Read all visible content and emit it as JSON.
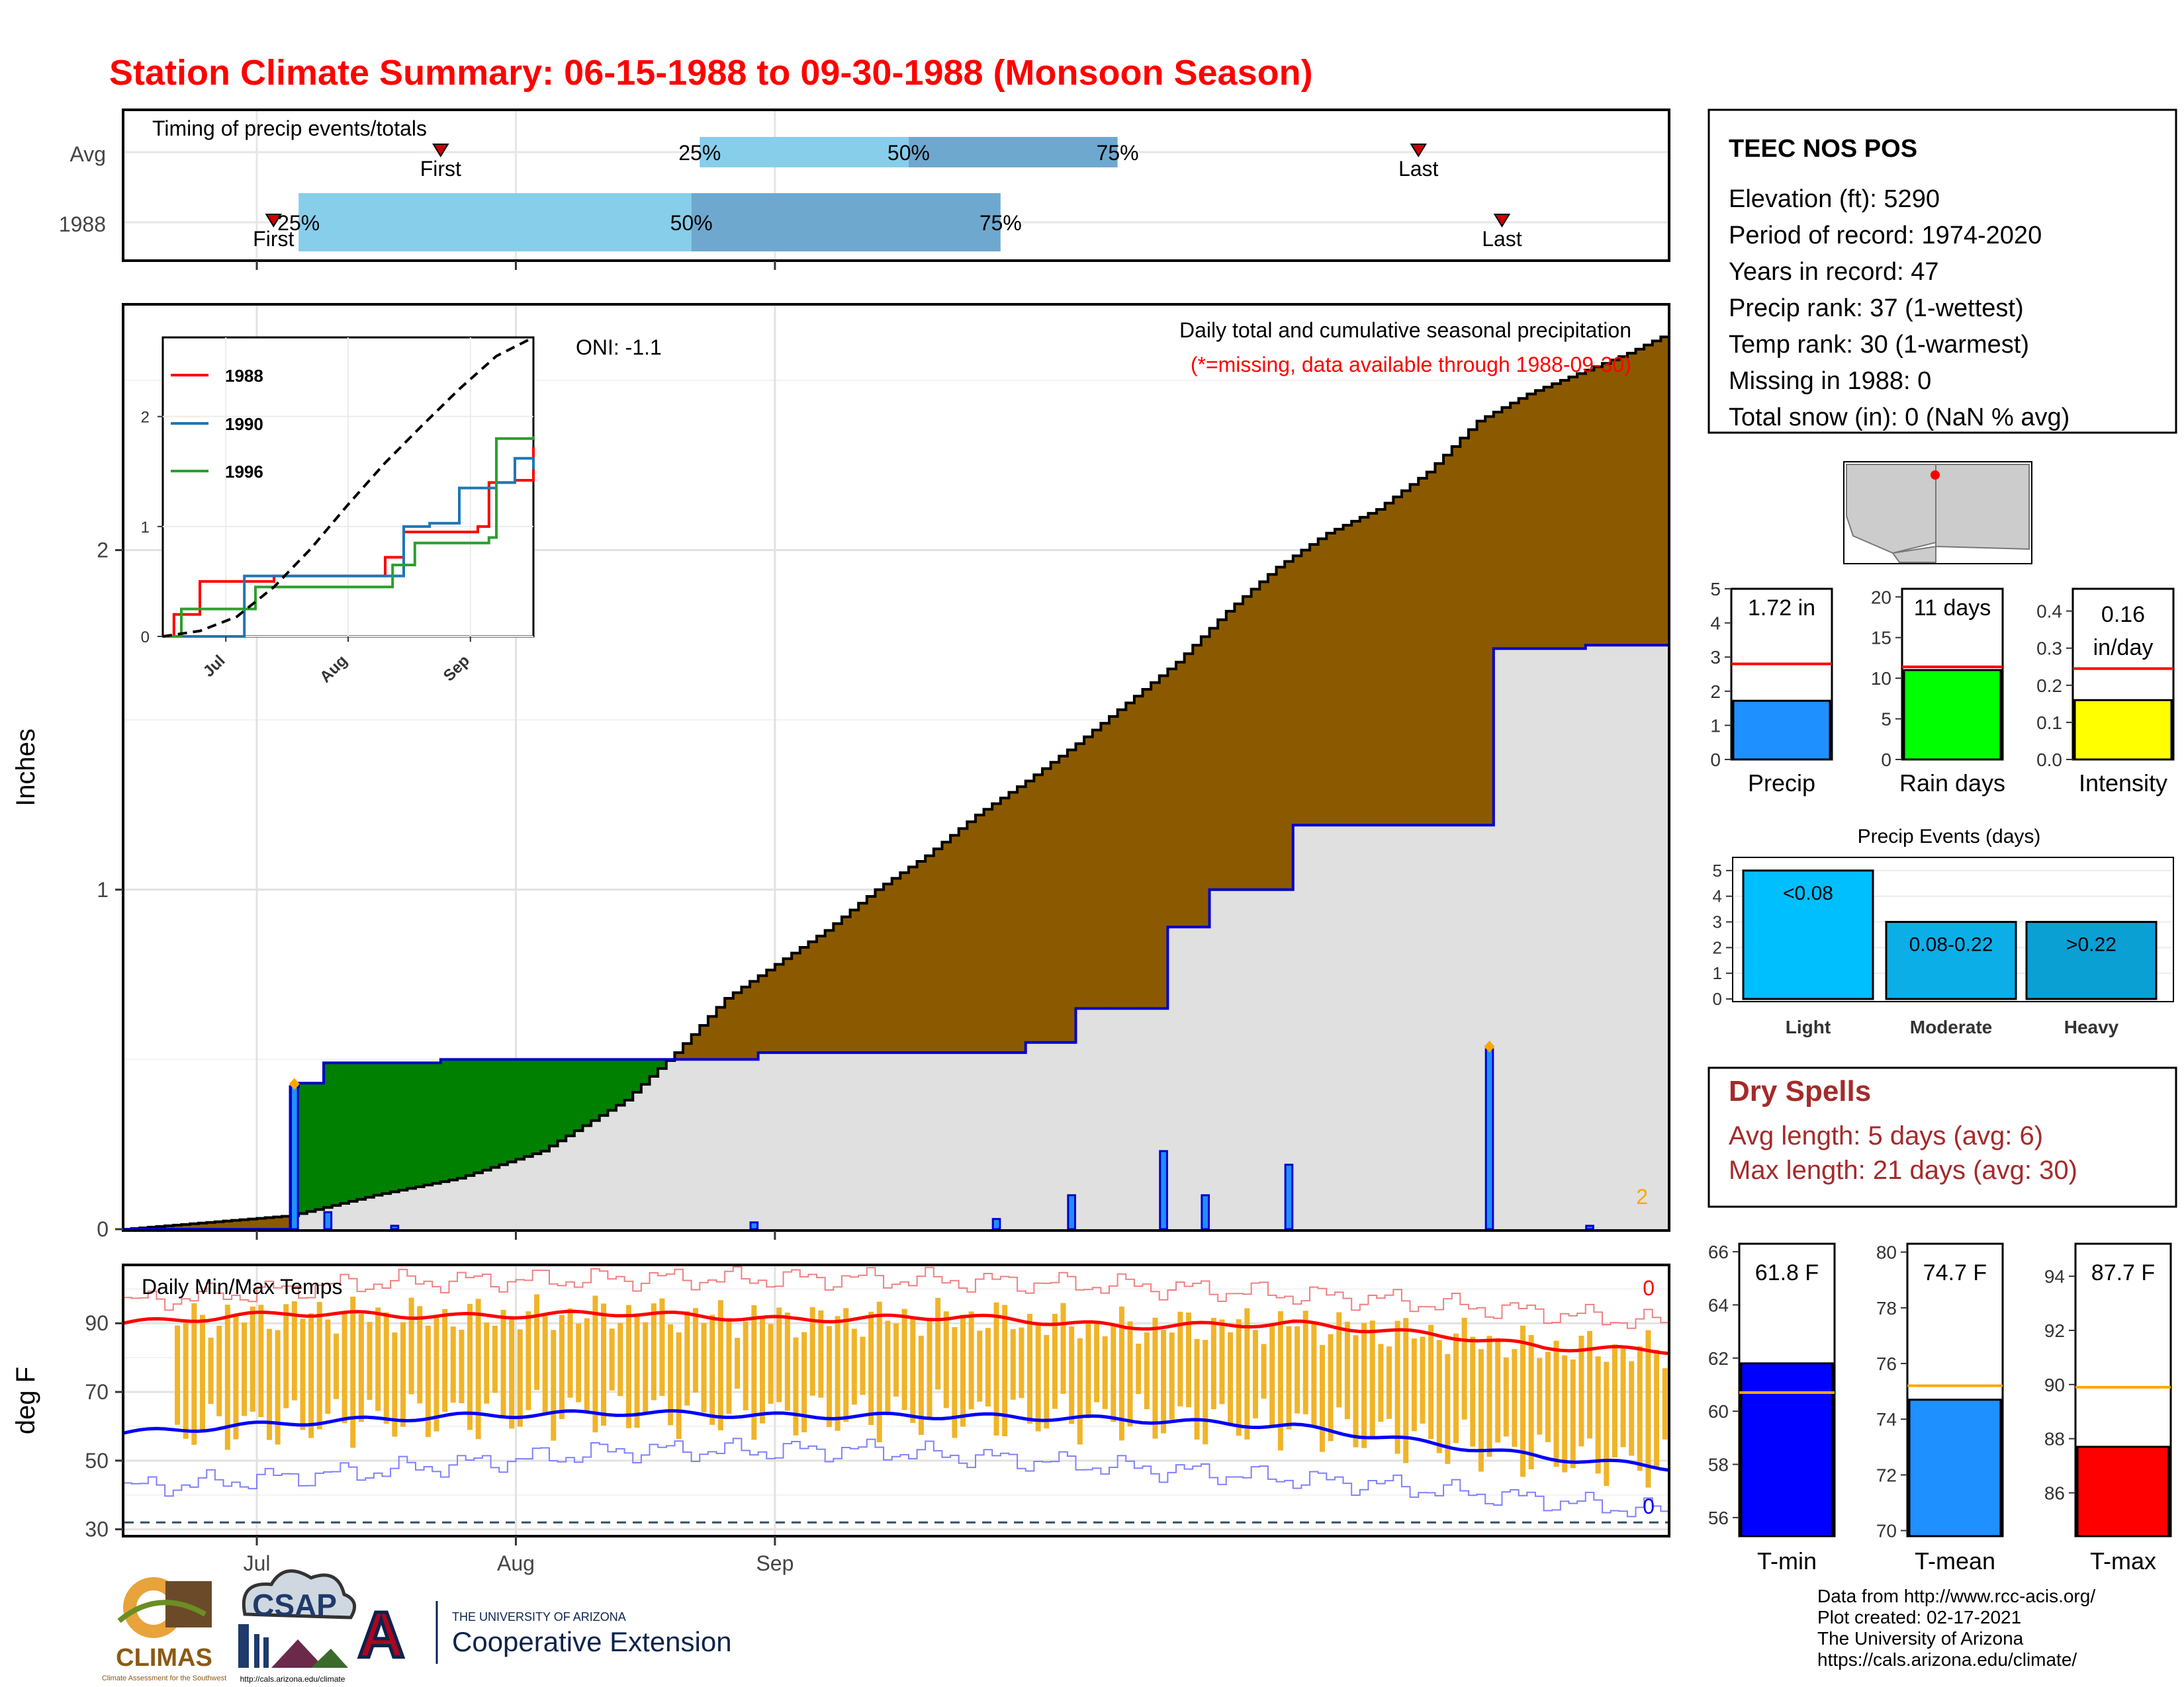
{
  "title": "Station Climate Summary: 06-15-1988 to 09-30-1988 (Monsoon Season)",
  "colors": {
    "title": "#ff0000",
    "precip_avg": "#8b5a00",
    "precip_above": "#008000",
    "bars": "#1e90ff",
    "tmax": "#ff0000",
    "tmin": "#0000ff",
    "temp_range": "#f0b429",
    "dry_spells": "#a52a2a"
  },
  "timing": {
    "title": "Timing of precip events/totals",
    "rows": [
      "Avg",
      "1988"
    ],
    "avg": {
      "first_label": "First",
      "last_label": "Last",
      "p25": "25%",
      "p50": "50%",
      "p75": "75%",
      "first_day": 38,
      "last_day": 155,
      "p25_day": 69,
      "p50_day": 94,
      "p75_day": 119
    },
    "year": {
      "first_label": "First",
      "last_label": "Last",
      "p25": "25%",
      "p50": "50%",
      "p75": "75%",
      "first_day": 18,
      "last_day": 165,
      "p25_day": 21,
      "p50_day": 68,
      "p75_day": 105
    }
  },
  "main_chart": {
    "oni": "ONI: -1.1",
    "subtitle": "Daily total and cumulative seasonal precipitation",
    "missing_note": "(*=missing, data available through 1988-09-30)",
    "ylabel": "Inches",
    "y_ticks": [
      "0",
      "1",
      "2"
    ],
    "x_ticks": [
      "Jul",
      "Aug",
      "Sep"
    ],
    "corner_count": "2"
  },
  "inset": {
    "legend": [
      "1988",
      "1990",
      "1996"
    ],
    "y_ticks": [
      "0",
      "1",
      "2"
    ],
    "x_ticks": [
      "Jul",
      "Aug",
      "Sep"
    ]
  },
  "temps": {
    "title": "Daily Min/Max Temps",
    "ylabel": "deg F",
    "y_ticks": [
      "30",
      "50",
      "70",
      "90"
    ],
    "x_ticks": [
      "Jul",
      "Aug",
      "Sep"
    ],
    "count_max": "0",
    "count_min": "0"
  },
  "station": {
    "name": "TEEC NOS POS",
    "lines": [
      "Elevation (ft): 5290",
      "Period of record: 1974-2020",
      "Years in record: 47",
      "Precip rank: 37 (1-wettest)",
      "Temp rank: 30 (1-warmest)",
      "Missing in 1988: 0",
      "Total snow (in): 0 (NaN % avg)"
    ]
  },
  "mini_precip": {
    "label": "Precip",
    "value_text": "1.72 in",
    "value": 1.72,
    "avg": 2.8,
    "ymax": 5,
    "ticks": [
      "0",
      "1",
      "2",
      "3",
      "4",
      "5"
    ],
    "color": "#1e90ff"
  },
  "mini_raindays": {
    "label": "Rain days",
    "value_text": "11 days",
    "value": 11,
    "avg": 11.4,
    "ymax": 21,
    "ticks": [
      "0",
      "5",
      "10",
      "15",
      "20"
    ],
    "color": "#00ff00"
  },
  "mini_intensity": {
    "label": "Intensity",
    "value_text_1": "0.16",
    "value_text_2": "in/day",
    "value": 0.16,
    "avg": 0.245,
    "ymax": 0.46,
    "ticks": [
      "0.0",
      "0.1",
      "0.2",
      "0.3",
      "0.4"
    ],
    "color": "#ffff00"
  },
  "precip_events": {
    "title": "Precip Events (days)",
    "ticks": [
      "0",
      "1",
      "2",
      "3",
      "4",
      "5"
    ],
    "bars": [
      {
        "label": "Light",
        "range": "<0.08",
        "value": 5,
        "color": "#00bfff"
      },
      {
        "label": "Moderate",
        "range": "0.08-0.22",
        "value": 3,
        "color": "#0caee8"
      },
      {
        "label": "Heavy",
        "range": ">0.22",
        "value": 3,
        "color": "#0aa0d4"
      }
    ]
  },
  "dry_spells": {
    "title": "Dry Spells",
    "avg": "Avg length: 5 days (avg: 6)",
    "max": "Max length: 21 days (avg: 30)"
  },
  "tmin_box": {
    "label": "T-min",
    "value_text": "61.8 F",
    "value": 61.8,
    "avg": 60.7,
    "ymin": 55.3,
    "ymax": 66.3,
    "ticks": [
      "56",
      "58",
      "60",
      "62",
      "64",
      "66"
    ],
    "color": "#0000ff"
  },
  "tmean_box": {
    "label": "T-mean",
    "value_text": "74.7 F",
    "value": 74.7,
    "avg": 75.2,
    "ymin": 69.8,
    "ymax": 80.3,
    "ticks": [
      "70",
      "72",
      "74",
      "76",
      "78",
      "80"
    ],
    "color": "#1e90ff"
  },
  "tmax_box": {
    "label": "T-max",
    "value_text": "87.7 F",
    "value": 87.7,
    "avg": 89.9,
    "ymin": 84.4,
    "ymax": 95.2,
    "ticks": [
      "86",
      "88",
      "90",
      "92",
      "94"
    ],
    "color": "#ff0000"
  },
  "footer": [
    "Data from http://www.rcc-acis.org/",
    "Plot created: 02-17-2021",
    "The University of Arizona",
    "https://cals.arizona.edu/climate/"
  ],
  "logos": {
    "climas": "CLIMAS",
    "climas_sub": "Climate Assessment for the Southwest",
    "csap": "CSAP",
    "csap_url": "http://cals.arizona.edu/climate",
    "ua_letter": "A",
    "ua_line1": "THE UNIVERSITY OF ARIZONA",
    "ua_line2": "Cooperative Extension"
  },
  "chart_data": [
    {
      "type": "area",
      "title": "Daily total and cumulative seasonal precipitation",
      "ylabel": "Inches",
      "ylim": [
        0,
        2.72
      ],
      "x_range": [
        "1988-06-15",
        "1988-09-30"
      ],
      "series": [
        {
          "name": "1988",
          "cumulative_points": [
            [
              0,
              0
            ],
            [
              19,
              0
            ],
            [
              20,
              0.42
            ],
            [
              21,
              0.43
            ],
            [
              24,
              0.49
            ],
            [
              38,
              0.5
            ],
            [
              75,
              0.5
            ],
            [
              76,
              0.52
            ],
            [
              107,
              0.52
            ],
            [
              108,
              0.55
            ],
            [
              113,
              0.55
            ],
            [
              114,
              0.65
            ],
            [
              124,
              0.65
            ],
            [
              125,
              0.89
            ],
            [
              129,
              0.89
            ],
            [
              130,
              1.0
            ],
            [
              139,
              1.0
            ],
            [
              140,
              1.19
            ],
            [
              163,
              1.19
            ],
            [
              164,
              1.71
            ],
            [
              174,
              1.71
            ],
            [
              175,
              1.72
            ],
            [
              185,
              1.72
            ]
          ]
        },
        {
          "name": "average",
          "cumulative_points": [
            [
              0,
              0
            ],
            [
              10,
              0.02
            ],
            [
              20,
              0.04
            ],
            [
              30,
              0.1
            ],
            [
              40,
              0.15
            ],
            [
              50,
              0.23
            ],
            [
              60,
              0.38
            ],
            [
              66,
              0.52
            ],
            [
              72,
              0.68
            ],
            [
              78,
              0.78
            ],
            [
              84,
              0.88
            ],
            [
              90,
              1.0
            ],
            [
              96,
              1.1
            ],
            [
              102,
              1.22
            ],
            [
              108,
              1.32
            ],
            [
              114,
              1.43
            ],
            [
              120,
              1.55
            ],
            [
              126,
              1.67
            ],
            [
              132,
              1.82
            ],
            [
              138,
              1.95
            ],
            [
              144,
              2.05
            ],
            [
              150,
              2.12
            ],
            [
              156,
              2.23
            ],
            [
              162,
              2.38
            ],
            [
              168,
              2.46
            ],
            [
              174,
              2.52
            ],
            [
              180,
              2.58
            ],
            [
              185,
              2.64
            ]
          ]
        }
      ],
      "daily_bars": [
        [
          20,
          0.42
        ],
        [
          24,
          0.05
        ],
        [
          32,
          0.01
        ],
        [
          75,
          0.02
        ],
        [
          104,
          0.03
        ],
        [
          113,
          0.1
        ],
        [
          124,
          0.23
        ],
        [
          129,
          0.1
        ],
        [
          139,
          0.19
        ],
        [
          163,
          0.53
        ],
        [
          175,
          0.01
        ]
      ],
      "missing_markers": [
        20,
        163
      ]
    },
    {
      "type": "line",
      "title": "Inset cumulative precipitation comparison",
      "ylim": [
        0,
        2.72
      ],
      "series": [
        {
          "name": "1988",
          "points": [
            [
              0,
              0
            ],
            [
              3,
              0.2
            ],
            [
              10,
              0.5
            ],
            [
              30,
              0.55
            ],
            [
              55,
              0.55
            ],
            [
              60,
              0.72
            ],
            [
              65,
              0.95
            ],
            [
              85,
              1.0
            ],
            [
              88,
              1.4
            ],
            [
              95,
              1.42
            ],
            [
              100,
              1.72
            ]
          ]
        },
        {
          "name": "1990",
          "points": [
            [
              0,
              0
            ],
            [
              10,
              0
            ],
            [
              22,
              0.55
            ],
            [
              60,
              0.55
            ],
            [
              65,
              1.0
            ],
            [
              72,
              1.03
            ],
            [
              80,
              1.35
            ],
            [
              90,
              1.4
            ],
            [
              95,
              1.62
            ],
            [
              100,
              1.52
            ]
          ]
        },
        {
          "name": "1996",
          "points": [
            [
              0,
              0
            ],
            [
              5,
              0.25
            ],
            [
              20,
              0.25
            ],
            [
              25,
              0.45
            ],
            [
              55,
              0.45
            ],
            [
              62,
              0.65
            ],
            [
              68,
              0.85
            ],
            [
              88,
              0.9
            ],
            [
              90,
              1.8
            ],
            [
              100,
              1.82
            ]
          ]
        },
        {
          "name": "average",
          "points": [
            [
              0,
              0
            ],
            [
              10,
              0.05
            ],
            [
              20,
              0.18
            ],
            [
              30,
              0.45
            ],
            [
              40,
              0.8
            ],
            [
              50,
              1.2
            ],
            [
              60,
              1.58
            ],
            [
              70,
              1.92
            ],
            [
              80,
              2.25
            ],
            [
              90,
              2.55
            ],
            [
              100,
              2.72
            ]
          ]
        }
      ]
    },
    {
      "type": "line",
      "title": "Daily Min/Max Temps",
      "ylabel": "deg F",
      "ylim": [
        28,
        107
      ],
      "series": [
        {
          "name": "avg_max",
          "points": [
            [
              0,
              90
            ],
            [
              20,
              93
            ],
            [
              40,
              92
            ],
            [
              60,
              93
            ],
            [
              80,
              91
            ],
            [
              100,
              92
            ],
            [
              120,
              89
            ],
            [
              140,
              90
            ],
            [
              150,
              88
            ],
            [
              160,
              86
            ],
            [
              170,
              83
            ],
            [
              185,
              82
            ]
          ]
        },
        {
          "name": "avg_min",
          "points": [
            [
              0,
              58
            ],
            [
              20,
              61
            ],
            [
              40,
              63
            ],
            [
              60,
              64
            ],
            [
              80,
              63
            ],
            [
              100,
              63
            ],
            [
              120,
              62
            ],
            [
              140,
              60
            ],
            [
              150,
              57
            ],
            [
              160,
              54
            ],
            [
              170,
              51
            ],
            [
              185,
              48
            ]
          ]
        },
        {
          "name": "record_max",
          "points": [
            [
              0,
              96
            ],
            [
              30,
              102
            ],
            [
              60,
              103
            ],
            [
              90,
              103
            ],
            [
              120,
              101
            ],
            [
              150,
              97
            ],
            [
              185,
              90
            ]
          ]
        },
        {
          "name": "record_min",
          "points": [
            [
              0,
              42
            ],
            [
              30,
              47
            ],
            [
              60,
              53
            ],
            [
              90,
              53
            ],
            [
              120,
              48
            ],
            [
              150,
              43
            ],
            [
              185,
              35
            ]
          ]
        },
        {
          "name": "freezing_ref",
          "points": [
            [
              0,
              32
            ],
            [
              185,
              32
            ]
          ]
        }
      ]
    }
  ]
}
